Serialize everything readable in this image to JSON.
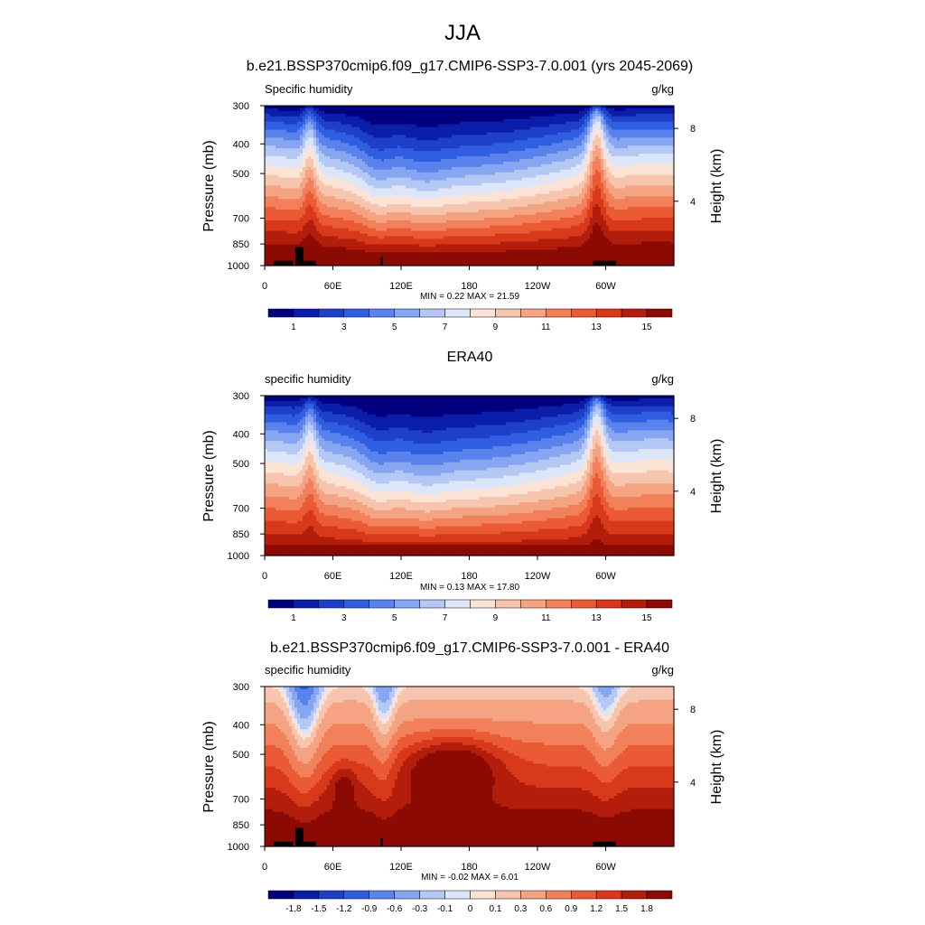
{
  "page": {
    "title": "JJA",
    "subtitle": "b.e21.BSSP370cmip6.f09_g17.CMIP6-SSP3-7.0.001 (yrs 2045-2069)"
  },
  "chart_data": [
    {
      "type": "heatmap",
      "title": "",
      "left_label": "Specific humidity",
      "right_label": "g/kg",
      "xlabel": "",
      "ylabel": "Pressure (mb)",
      "y2label": "Height (km)",
      "x_ticks": [
        "0",
        "60E",
        "120E",
        "180",
        "120W",
        "60W"
      ],
      "y_ticks": [
        "300",
        "400",
        "500",
        "700",
        "850",
        "1000"
      ],
      "y2_ticks": [
        "8",
        "4"
      ],
      "stats": "MIN =   0.22  MAX =  21.59",
      "min": 0.22,
      "max": 21.59,
      "colorbar_labels": [
        "1",
        "3",
        "5",
        "7",
        "9",
        "11",
        "13",
        "15"
      ],
      "levels": [
        0,
        1,
        2,
        3,
        4,
        5,
        6,
        7,
        8,
        9,
        10,
        11,
        12,
        13,
        14,
        15,
        16
      ]
    },
    {
      "type": "heatmap",
      "title": "ERA40",
      "left_label": "specific humidity",
      "right_label": "g/kg",
      "xlabel": "",
      "ylabel": "Pressure (mb)",
      "y2label": "Height (km)",
      "x_ticks": [
        "0",
        "60E",
        "120E",
        "180",
        "120W",
        "60W"
      ],
      "y_ticks": [
        "300",
        "400",
        "500",
        "700",
        "850",
        "1000"
      ],
      "y2_ticks": [
        "8",
        "4"
      ],
      "stats": "MIN =   0.13  MAX =  17.80",
      "min": 0.13,
      "max": 17.8,
      "colorbar_labels": [
        "1",
        "3",
        "5",
        "7",
        "9",
        "11",
        "13",
        "15"
      ],
      "levels": [
        0,
        1,
        2,
        3,
        4,
        5,
        6,
        7,
        8,
        9,
        10,
        11,
        12,
        13,
        14,
        15,
        16
      ]
    },
    {
      "type": "heatmap",
      "title": "b.e21.BSSP370cmip6.f09_g17.CMIP6-SSP3-7.0.001 - ERA40",
      "left_label": "specific humidity",
      "right_label": "g/kg",
      "xlabel": "",
      "ylabel": "Pressure (mb)",
      "y2label": "Height (km)",
      "x_ticks": [
        "0",
        "60E",
        "120E",
        "180",
        "120W",
        "60W"
      ],
      "y_ticks": [
        "300",
        "400",
        "500",
        "700",
        "850",
        "1000"
      ],
      "y2_ticks": [
        "8",
        "4"
      ],
      "stats": "MIN =  -0.02  MAX =   6.01",
      "min": -0.02,
      "max": 6.01,
      "colorbar_labels": [
        "-1.8",
        "-1.5",
        "-1.2",
        "-0.9",
        "-0.6",
        "-0.3",
        "-0.1",
        "0",
        "0.1",
        "0.3",
        "0.6",
        "0.9",
        "1.2",
        "1.5",
        "1.8"
      ],
      "levels": [
        -2.1,
        -1.8,
        -1.5,
        -1.2,
        -0.9,
        -0.6,
        -0.3,
        -0.1,
        0,
        0.1,
        0.3,
        0.6,
        0.9,
        1.2,
        1.5,
        1.8,
        2.1
      ]
    }
  ],
  "colors": {
    "palette": [
      "#00007f",
      "#0a1eaa",
      "#1e40c8",
      "#2f5fe0",
      "#5a82ec",
      "#86a6f2",
      "#b5c8f5",
      "#dce6f8",
      "#fbe3d6",
      "#f7c4ae",
      "#f4a383",
      "#f2805b",
      "#ea5a35",
      "#d8391b",
      "#b31d0b",
      "#8c0a04"
    ]
  }
}
